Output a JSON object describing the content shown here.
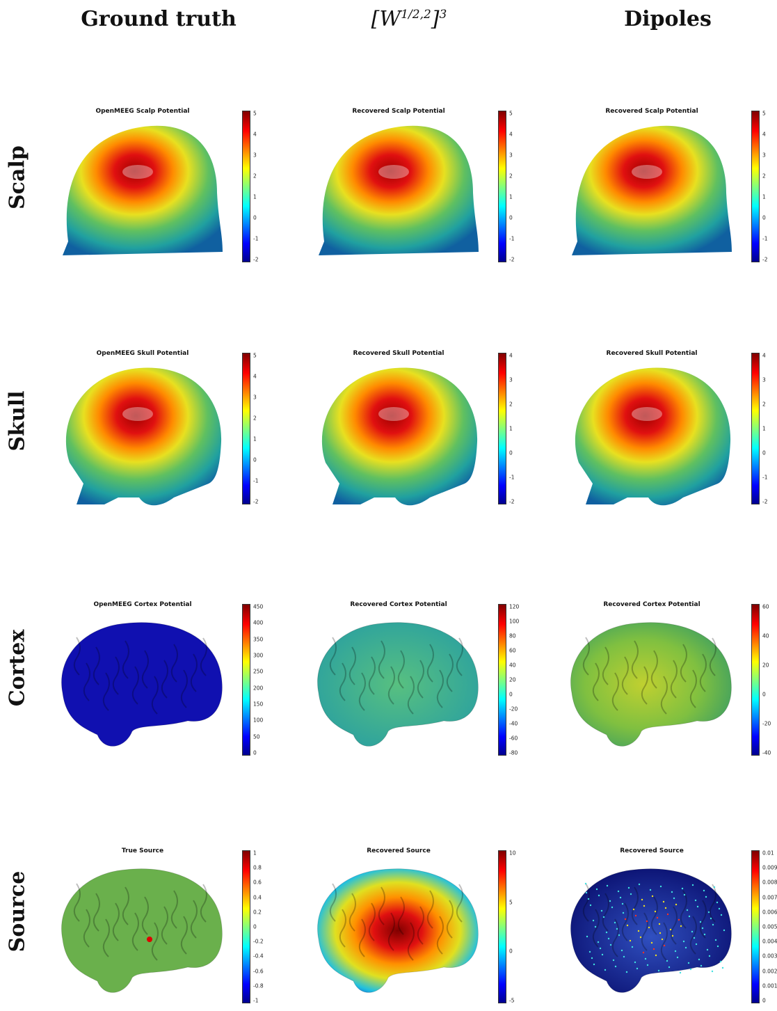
{
  "columns": [
    {
      "title": "Ground truth"
    },
    {
      "title": "[W^{1/2,2}]^3",
      "math_base": "[W",
      "math_sup1": "1/2,2",
      "math_close": "]",
      "math_sup2": "3"
    },
    {
      "title": "Dipoles"
    }
  ],
  "rows": [
    {
      "label": "Scalp"
    },
    {
      "label": "Skull"
    },
    {
      "label": "Cortex"
    },
    {
      "label": "Source"
    }
  ],
  "panels": [
    {
      "title": "OpenMEEG Scalp Potential",
      "ticks": [
        "5",
        "4",
        "3",
        "2",
        "1",
        "0",
        "-1",
        "-2"
      ]
    },
    {
      "title": "Recovered Scalp Potential",
      "ticks": [
        "5",
        "4",
        "3",
        "2",
        "1",
        "0",
        "-1",
        "-2"
      ]
    },
    {
      "title": "Recovered Scalp Potential",
      "ticks": [
        "5",
        "4",
        "3",
        "2",
        "1",
        "0",
        "-1",
        "-2"
      ]
    },
    {
      "title": "OpenMEEG Skull Potential",
      "ticks": [
        "5",
        "4",
        "3",
        "2",
        "1",
        "0",
        "-1",
        "-2"
      ]
    },
    {
      "title": "Recovered Skull Potential",
      "ticks": [
        "4",
        "3",
        "2",
        "1",
        "0",
        "-1",
        "-2"
      ]
    },
    {
      "title": "Recovered Skull Potential",
      "ticks": [
        "4",
        "3",
        "2",
        "1",
        "0",
        "-1",
        "-2"
      ]
    },
    {
      "title": "OpenMEEG Cortex Potential",
      "ticks": [
        "450",
        "400",
        "350",
        "300",
        "250",
        "200",
        "150",
        "100",
        "50",
        "0"
      ]
    },
    {
      "title": "Recovered Cortex Potential",
      "ticks": [
        "120",
        "100",
        "80",
        "60",
        "40",
        "20",
        "0",
        "-20",
        "-40",
        "-60",
        "-80"
      ]
    },
    {
      "title": "Recovered Cortex Potential",
      "ticks": [
        "60",
        "40",
        "20",
        "0",
        "-20",
        "-40"
      ]
    },
    {
      "title": "True Source",
      "ticks": [
        "1",
        "0.8",
        "0.6",
        "0.4",
        "0.2",
        "0",
        "-0.2",
        "-0.4",
        "-0.6",
        "-0.8",
        "-1"
      ]
    },
    {
      "title": "Recovered Source",
      "ticks": [
        "10",
        "5",
        "0",
        "-5"
      ]
    },
    {
      "title": "Recovered Source",
      "ticks": [
        "0.01",
        "0.009",
        "0.008",
        "0.007",
        "0.006",
        "0.005",
        "0.004",
        "0.003",
        "0.002",
        "0.001",
        "0"
      ]
    }
  ],
  "colors": {
    "colormap": "jet",
    "cortex_gt": "#1010b0",
    "source_gt": "#6ab04c"
  }
}
